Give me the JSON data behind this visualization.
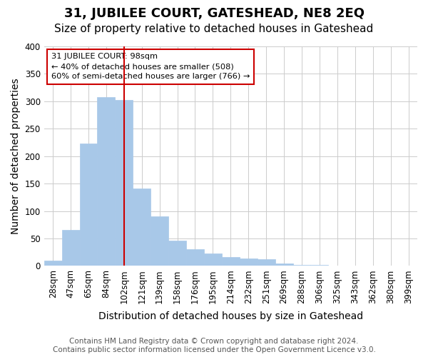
{
  "title": "31, JUBILEE COURT, GATESHEAD, NE8 2EQ",
  "subtitle": "Size of property relative to detached houses in Gateshead",
  "xlabel": "Distribution of detached houses by size in Gateshead",
  "ylabel": "Number of detached properties",
  "bar_labels": [
    "28sqm",
    "47sqm",
    "65sqm",
    "84sqm",
    "102sqm",
    "121sqm",
    "139sqm",
    "158sqm",
    "176sqm",
    "195sqm",
    "214sqm",
    "232sqm",
    "251sqm",
    "269sqm",
    "288sqm",
    "306sqm",
    "325sqm",
    "343sqm",
    "362sqm",
    "380sqm",
    "399sqm"
  ],
  "bar_values": [
    10,
    65,
    223,
    307,
    303,
    141,
    90,
    46,
    31,
    23,
    16,
    14,
    12,
    4,
    2,
    2,
    1,
    1,
    1,
    1,
    1
  ],
  "bar_color": "#a8c8e8",
  "vline_x": 4,
  "vline_color": "#cc0000",
  "annotation_title": "31 JUBILEE COURT: 98sqm",
  "annotation_line1": "← 40% of detached houses are smaller (508)",
  "annotation_line2": "60% of semi-detached houses are larger (766) →",
  "annotation_box_color": "#ffffff",
  "annotation_box_edge": "#cc0000",
  "ylim": [
    0,
    400
  ],
  "yticks": [
    0,
    50,
    100,
    150,
    200,
    250,
    300,
    350,
    400
  ],
  "footer_line1": "Contains HM Land Registry data © Crown copyright and database right 2024.",
  "footer_line2": "Contains public sector information licensed under the Open Government Licence v3.0.",
  "bg_color": "#ffffff",
  "grid_color": "#cccccc",
  "title_fontsize": 13,
  "subtitle_fontsize": 11,
  "label_fontsize": 10,
  "tick_fontsize": 8.5,
  "footer_fontsize": 7.5
}
